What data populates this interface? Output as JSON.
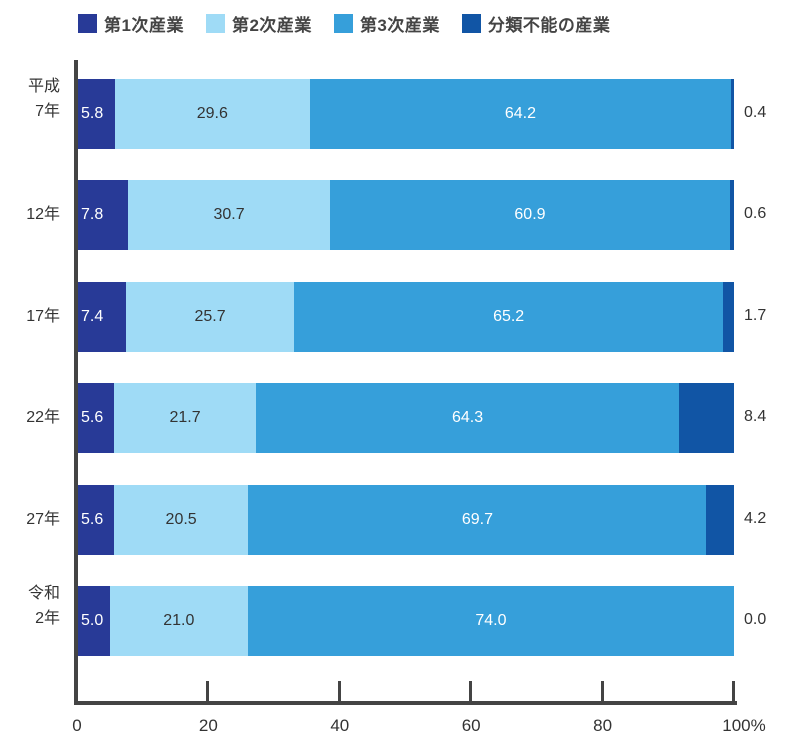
{
  "legend": [
    {
      "label": "第1次産業",
      "color": "#283a97"
    },
    {
      "label": "第2次産業",
      "color": "#9fdbf6"
    },
    {
      "label": "第3次産業",
      "color": "#369fda"
    },
    {
      "label": "分類不能の産業",
      "color": "#1155a5"
    }
  ],
  "rows": [
    {
      "label_line1": "平成",
      "label_line2": "7年",
      "v1": "5.8",
      "v2": "29.6",
      "v3": "64.2",
      "v4": "0.4"
    },
    {
      "label_line1": "",
      "label_line2": "12年",
      "v1": "7.8",
      "v2": "30.7",
      "v3": "60.9",
      "v4": "0.6"
    },
    {
      "label_line1": "",
      "label_line2": "17年",
      "v1": "7.4",
      "v2": "25.7",
      "v3": "65.2",
      "v4": "1.7"
    },
    {
      "label_line1": "",
      "label_line2": "22年",
      "v1": "5.6",
      "v2": "21.7",
      "v3": "64.3",
      "v4": "8.4"
    },
    {
      "label_line1": "",
      "label_line2": "27年",
      "v1": "5.6",
      "v2": "20.5",
      "v3": "69.7",
      "v4": "4.2"
    },
    {
      "label_line1": "令和",
      "label_line2": "2年",
      "v1": "5.0",
      "v2": "21.0",
      "v3": "74.0",
      "v4": "0.0"
    }
  ],
  "x_ticks": [
    "0",
    "20",
    "40",
    "60",
    "80",
    "100%"
  ],
  "chart_data": {
    "type": "bar",
    "orientation": "horizontal",
    "stacked": true,
    "title": "",
    "xlabel": "",
    "ylabel": "",
    "xlim": [
      0,
      100
    ],
    "x_tick_labels": [
      "0",
      "20",
      "40",
      "60",
      "80",
      "100%"
    ],
    "categories": [
      "平成7年",
      "12年",
      "17年",
      "22年",
      "27年",
      "令和2年"
    ],
    "legend_position": "top",
    "grid": false,
    "series": [
      {
        "name": "第1次産業",
        "color": "#283a97",
        "values": [
          5.8,
          7.8,
          7.4,
          5.6,
          5.6,
          5.0
        ]
      },
      {
        "name": "第2次産業",
        "color": "#9fdbf6",
        "values": [
          29.6,
          30.7,
          25.7,
          21.7,
          20.5,
          21.0
        ]
      },
      {
        "name": "第3次産業",
        "color": "#369fda",
        "values": [
          64.2,
          60.9,
          65.2,
          64.3,
          69.7,
          74.0
        ]
      },
      {
        "name": "分類不能の産業",
        "color": "#1155a5",
        "values": [
          0.4,
          0.6,
          1.7,
          8.4,
          4.2,
          0.0
        ]
      }
    ]
  }
}
